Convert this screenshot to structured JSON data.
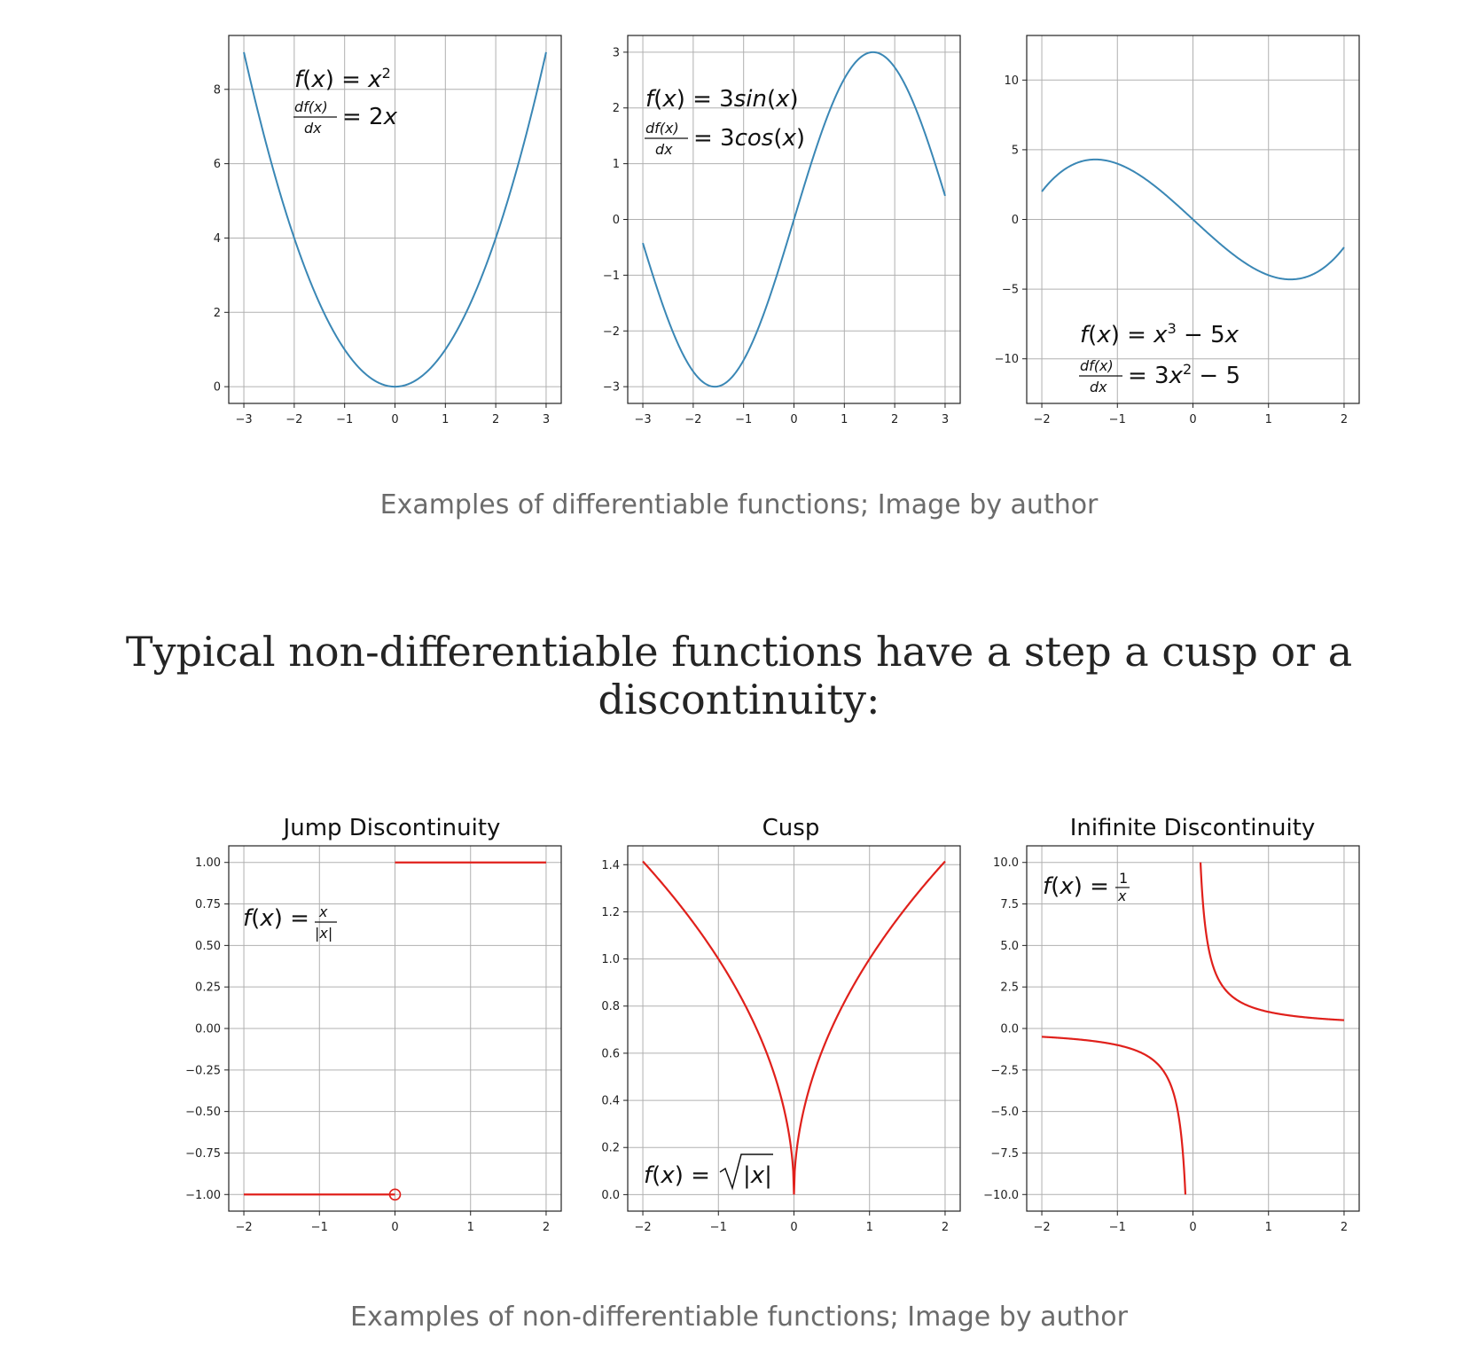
{
  "captions": {
    "top": "Examples of differentiable functions; Image by author",
    "bottom": "Examples of non-differentiable functions; Image by author"
  },
  "heading": "Typical non-differentiable functions have a step a cusp or a discontinuity:",
  "colors": {
    "blue": "#3a87b5",
    "red": "#e0201b",
    "grid": "#b0b0b0"
  },
  "chart_data": [
    {
      "type": "line",
      "function": "x^2",
      "xlim": [
        -3.3,
        3.3
      ],
      "ylim": [
        -0.45,
        9.45
      ],
      "x_ticks": [
        -3,
        -2,
        -1,
        0,
        1,
        2,
        3
      ],
      "y_ticks": [
        0,
        2,
        4,
        6,
        8
      ],
      "grid": true,
      "series": [
        {
          "x": [
            -3,
            -2,
            -1,
            0,
            1,
            2,
            3
          ],
          "y": [
            9,
            4,
            1,
            0,
            1,
            4,
            9
          ]
        }
      ],
      "annotation_lines": [
        "f(x) = x²",
        "df(x)/dx = 2x"
      ]
    },
    {
      "type": "line",
      "function": "3sin(x)",
      "xlim": [
        -3.3,
        3.3
      ],
      "ylim": [
        -3.3,
        3.3
      ],
      "x_ticks": [
        -3,
        -2,
        -1,
        0,
        1,
        2,
        3
      ],
      "y_ticks": [
        -3,
        -2,
        -1,
        0,
        1,
        2,
        3
      ],
      "grid": true,
      "series": [
        {
          "x": [
            -3,
            -1.57,
            0,
            1.57,
            3
          ],
          "y": [
            -0.42,
            -3,
            0,
            3,
            0.42
          ]
        }
      ],
      "annotation_lines": [
        "f(x) = 3sin(x)",
        "df(x)/dx = 3cos(x)"
      ]
    },
    {
      "type": "line",
      "function": "x^3 - 5x",
      "xlim": [
        -2.2,
        2.2
      ],
      "ylim": [
        -13.2,
        13.2
      ],
      "x_ticks": [
        -2,
        -1,
        0,
        1,
        2
      ],
      "y_ticks": [
        -10,
        -5,
        0,
        5,
        10
      ],
      "grid": true,
      "series": [
        {
          "x": [
            -2,
            -1.29,
            0,
            1.29,
            2
          ],
          "y": [
            2,
            4.3,
            0,
            -4.3,
            -2
          ]
        }
      ],
      "annotation_lines": [
        "f(x) = x³ − 5x",
        "df(x)/dx = 3x² − 5"
      ]
    },
    {
      "type": "line",
      "title": "Jump Discontinuity",
      "function": "x/|x|",
      "xlim": [
        -2.2,
        2.2
      ],
      "ylim": [
        -1.1,
        1.1
      ],
      "x_ticks": [
        -2,
        -1,
        0,
        1,
        2
      ],
      "y_ticks": [
        1.0,
        0.75,
        0.5,
        0.25,
        0.0,
        -0.25,
        -0.5,
        -0.75,
        -1.0
      ],
      "grid": true,
      "series": [
        {
          "x": [
            -2,
            0,
            0,
            2
          ],
          "y": [
            -1,
            -1,
            1,
            1
          ]
        }
      ],
      "open_point": {
        "x": 0,
        "y": -1
      },
      "annotation_lines": [
        "f(x) = x/|x|"
      ]
    },
    {
      "type": "line",
      "title": "Cusp",
      "function": "sqrt(|x|)",
      "xlim": [
        -2.2,
        2.2
      ],
      "ylim": [
        -0.07,
        1.48
      ],
      "x_ticks": [
        -2,
        -1,
        0,
        1,
        2
      ],
      "y_ticks": [
        0.0,
        0.2,
        0.4,
        0.6,
        0.8,
        1.0,
        1.2,
        1.4
      ],
      "grid": true,
      "series": [
        {
          "x": [
            -2,
            -1,
            0,
            1,
            2
          ],
          "y": [
            1.414,
            1,
            0,
            1,
            1.414
          ]
        }
      ],
      "annotation_lines": [
        "f(x) = √|x|"
      ]
    },
    {
      "type": "line",
      "title": "Inifinite Discontinuity",
      "function": "1/x",
      "xlim": [
        -2.2,
        2.2
      ],
      "ylim": [
        -11,
        11
      ],
      "x_ticks": [
        -2,
        -1,
        0,
        1,
        2
      ],
      "y_ticks": [
        10.0,
        7.5,
        5.0,
        2.5,
        0.0,
        -2.5,
        -5.0,
        -7.5,
        -10.0
      ],
      "grid": true,
      "series": [
        {
          "x": [
            -2,
            -1,
            -0.1,
            0.1,
            1,
            2
          ],
          "y": [
            -0.5,
            -1,
            -10,
            10,
            1,
            0.5
          ]
        }
      ],
      "annotation_lines": [
        "f(x) = 1/x"
      ]
    }
  ]
}
